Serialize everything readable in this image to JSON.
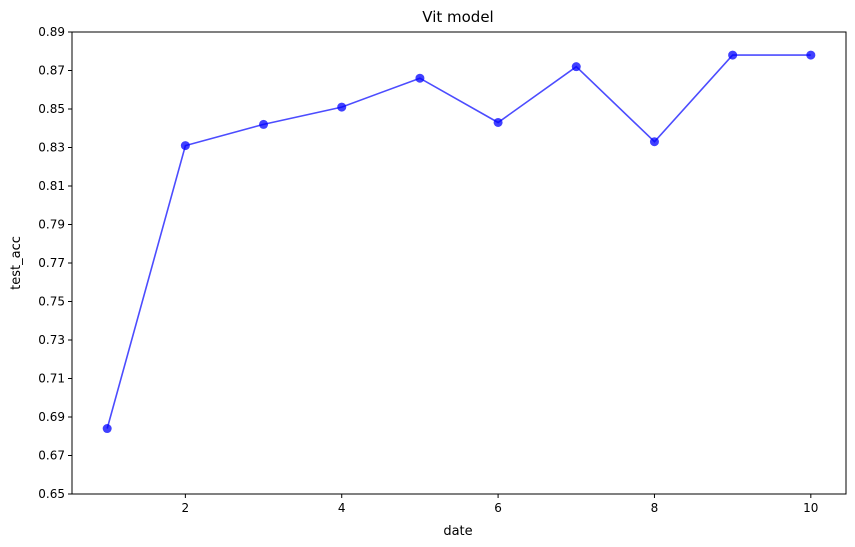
{
  "chart_data": {
    "type": "line",
    "title": "Vit model",
    "xlabel": "date",
    "ylabel": "test_acc",
    "x": [
      1,
      2,
      3,
      4,
      5,
      6,
      7,
      8,
      9,
      10
    ],
    "series": [
      {
        "values": [
          0.684,
          0.831,
          0.842,
          0.851,
          0.866,
          0.843,
          0.872,
          0.833,
          0.878,
          0.878
        ],
        "color": "#0000ff",
        "marker": "circle"
      }
    ],
    "xlim": [
      0.55,
      10.45
    ],
    "ylim": [
      0.65,
      0.89
    ],
    "xticks": [
      2,
      4,
      6,
      8,
      10
    ],
    "yticks": [
      0.65,
      0.67,
      0.69,
      0.71,
      0.73,
      0.75,
      0.77,
      0.79,
      0.81,
      0.83,
      0.85,
      0.87,
      0.89
    ],
    "ytick_labels": [
      "0.65",
      "0.67",
      "0.69",
      "0.71",
      "0.73",
      "0.75",
      "0.77",
      "0.79",
      "0.81",
      "0.83",
      "0.85",
      "0.87",
      "0.89"
    ],
    "grid": false,
    "legend": "none"
  }
}
